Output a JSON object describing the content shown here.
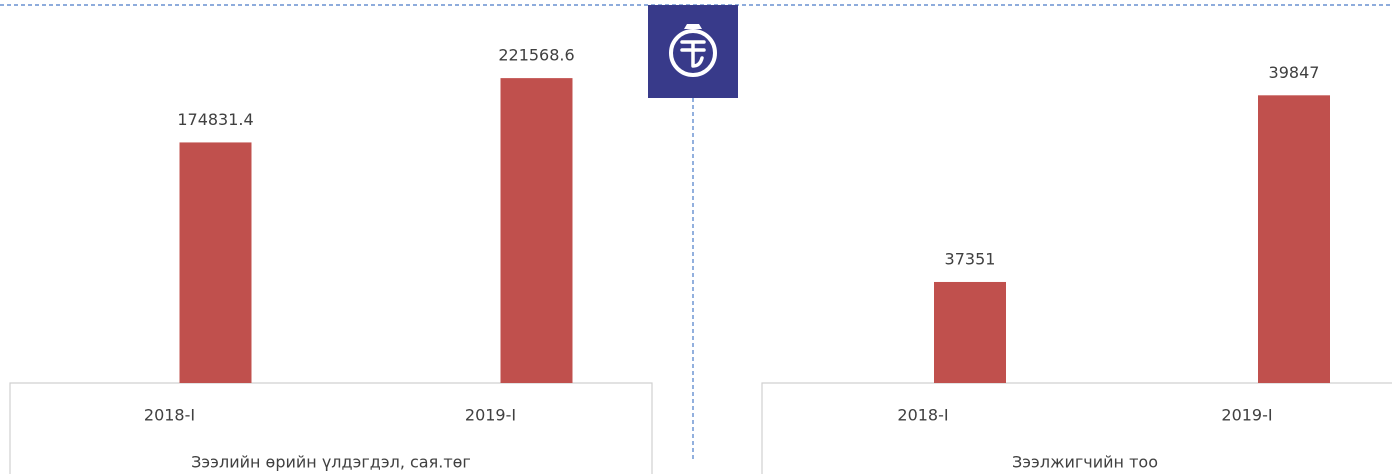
{
  "chart_data": [
    {
      "type": "bar",
      "x_label": "Зээлийн өрийн үлдэгдэл, сая.төг",
      "categories": [
        "2018-I",
        "2019-I"
      ],
      "values": [
        174831.4,
        221568.6
      ],
      "color": "#c0504d",
      "ylim": [
        0,
        250000
      ]
    },
    {
      "type": "bar",
      "x_label": "Зээлжигчийн тоо",
      "categories": [
        "2018-I",
        "2019-I"
      ],
      "values": [
        37351,
        39847
      ],
      "color": "#c0504d",
      "ylim": [
        36000,
        40600
      ]
    }
  ]
}
